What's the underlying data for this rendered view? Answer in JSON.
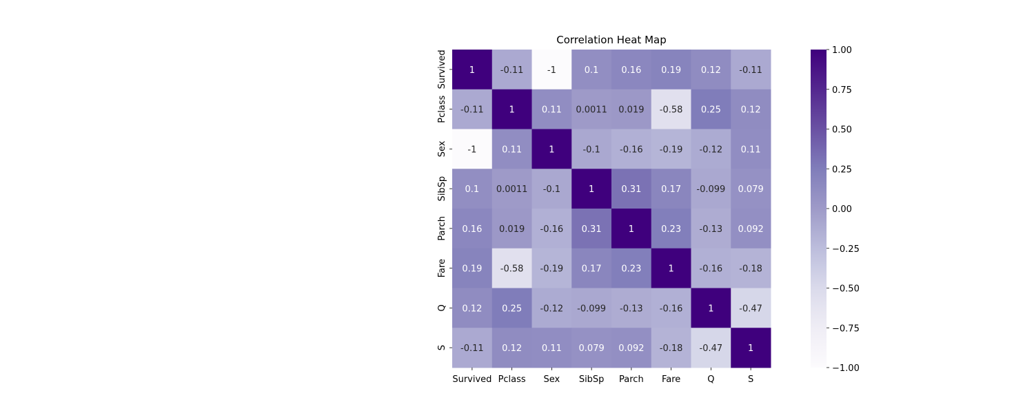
{
  "chart_data": {
    "type": "heatmap",
    "title": "Correlation Heat Map",
    "xlabel": "",
    "ylabel": "",
    "x_categories": [
      "Survived",
      "Pclass",
      "Sex",
      "SibSp",
      "Parch",
      "Fare",
      "Q",
      "S"
    ],
    "y_categories": [
      "Survived",
      "Pclass",
      "Sex",
      "SibSp",
      "Parch",
      "Fare",
      "Q",
      "S"
    ],
    "values": [
      [
        1,
        -0.11,
        -1,
        0.1,
        0.16,
        0.19,
        0.12,
        -0.11
      ],
      [
        -0.11,
        1,
        0.11,
        0.0011,
        0.019,
        -0.58,
        0.25,
        0.12
      ],
      [
        -1,
        0.11,
        1,
        -0.1,
        -0.16,
        -0.19,
        -0.12,
        0.11
      ],
      [
        0.1,
        0.0011,
        -0.1,
        1,
        0.31,
        0.17,
        -0.099,
        0.079
      ],
      [
        0.16,
        0.019,
        -0.16,
        0.31,
        1,
        0.23,
        -0.13,
        0.092
      ],
      [
        0.19,
        -0.58,
        -0.19,
        0.17,
        0.23,
        1,
        -0.16,
        -0.18
      ],
      [
        0.12,
        0.25,
        -0.12,
        -0.099,
        -0.13,
        -0.16,
        1,
        -0.47
      ],
      [
        -0.11,
        0.12,
        0.11,
        0.079,
        0.092,
        -0.18,
        -0.47,
        1
      ]
    ],
    "annotations": [
      [
        "1",
        "-0.11",
        "-1",
        "0.1",
        "0.16",
        "0.19",
        "0.12",
        "-0.11"
      ],
      [
        "-0.11",
        "1",
        "0.11",
        "0.0011",
        "0.019",
        "-0.58",
        "0.25",
        "0.12"
      ],
      [
        "-1",
        "0.11",
        "1",
        "-0.1",
        "-0.16",
        "-0.19",
        "-0.12",
        "0.11"
      ],
      [
        "0.1",
        "0.0011",
        "-0.1",
        "1",
        "0.31",
        "0.17",
        "-0.099",
        "0.079"
      ],
      [
        "0.16",
        "0.019",
        "-0.16",
        "0.31",
        "1",
        "0.23",
        "-0.13",
        "0.092"
      ],
      [
        "0.19",
        "-0.58",
        "-0.19",
        "0.17",
        "0.23",
        "1",
        "-0.16",
        "-0.18"
      ],
      [
        "0.12",
        "0.25",
        "-0.12",
        "-0.099",
        "-0.13",
        "-0.16",
        "1",
        "-0.47"
      ],
      [
        "-0.11",
        "0.12",
        "0.11",
        "0.079",
        "0.092",
        "-0.18",
        "-0.47",
        "1"
      ]
    ],
    "colormap": "Purples",
    "color_range": [
      -1,
      1
    ],
    "colorbar_ticks": [
      1,
      0.75,
      0.5,
      0.25,
      0,
      -0.25,
      -0.5,
      -0.75,
      -1
    ],
    "colorbar_tick_labels": [
      "1.00",
      "0.75",
      "0.50",
      "0.25",
      "0.00",
      "−0.25",
      "−0.50",
      "−0.75",
      "−1.00"
    ],
    "grid": false,
    "legend": "colorbar-right"
  }
}
